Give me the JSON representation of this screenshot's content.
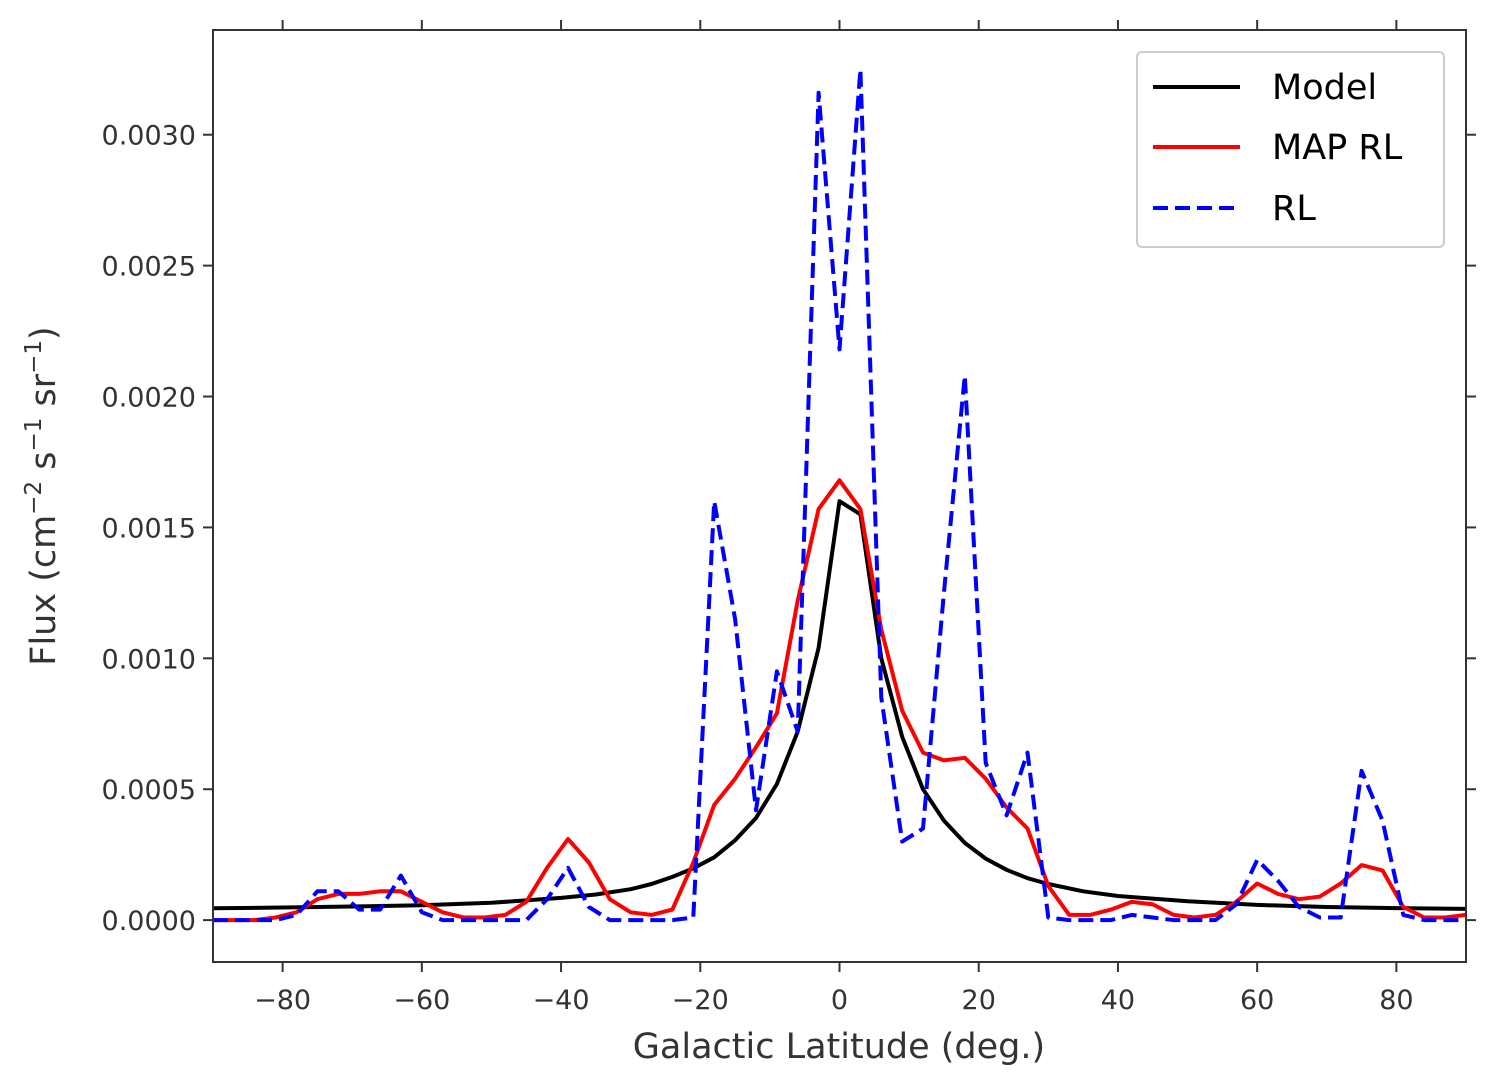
{
  "chart_data": {
    "type": "line",
    "title": "",
    "xlabel": "Galactic Latitude (deg.)",
    "ylabel": {
      "prefix": "Flux (cm",
      "sup1": "−2",
      "mid1": " s",
      "sup2": "−1",
      "mid2": " sr",
      "sup3": "−1",
      "suffix": ")"
    },
    "xlim": [
      -90,
      90
    ],
    "ylim": [
      -0.00016,
      0.0034
    ],
    "xticks": [
      -80,
      -60,
      -40,
      -20,
      0,
      20,
      40,
      60,
      80
    ],
    "xtick_labels": [
      "−80",
      "−60",
      "−40",
      "−20",
      "0",
      "20",
      "40",
      "60",
      "80"
    ],
    "yticks": [
      0.0,
      0.0005,
      0.001,
      0.0015,
      0.002,
      0.0025,
      0.003
    ],
    "ytick_labels": [
      "0.0000",
      "0.0005",
      "0.0010",
      "0.0015",
      "0.0020",
      "0.0025",
      "0.0030"
    ],
    "grid": false,
    "legend_position": "top-right",
    "series": [
      {
        "name": "Model",
        "color": "#000000",
        "style": "solid",
        "x": [
          -90,
          -80,
          -70,
          -60,
          -50,
          -40,
          -35,
          -30,
          -27,
          -24,
          -21,
          -18,
          -15,
          -12,
          -9,
          -6,
          -3,
          0,
          3,
          6,
          9,
          12,
          15,
          18,
          21,
          24,
          27,
          30,
          35,
          40,
          50,
          60,
          70,
          80,
          90
        ],
        "y": [
          4.5e-05,
          4.8e-05,
          5.2e-05,
          5.7e-05,
          6.6e-05,
          8.5e-05,
          9.8e-05,
          0.000118,
          0.000138,
          0.000165,
          0.000198,
          0.00024,
          0.000305,
          0.00039,
          0.00052,
          0.00072,
          0.00104,
          0.0016,
          0.00155,
          0.001,
          0.0007,
          0.0005,
          0.00038,
          0.000295,
          0.000235,
          0.000192,
          0.00016,
          0.000138,
          0.00011,
          9.2e-05,
          7.2e-05,
          5.8e-05,
          5e-05,
          4.6e-05,
          4.3e-05
        ]
      },
      {
        "name": "MAP RL",
        "color": "#ff0000",
        "style": "solid",
        "x": [
          -90,
          -84,
          -81,
          -78,
          -75,
          -72,
          -69,
          -66,
          -63,
          -60,
          -57,
          -54,
          -51,
          -48,
          -45,
          -42,
          -39,
          -36,
          -33,
          -30,
          -27,
          -24,
          -21,
          -18,
          -15,
          -12,
          -9,
          -6,
          -3,
          0,
          3,
          6,
          9,
          12,
          15,
          18,
          21,
          24,
          27,
          30,
          33,
          36,
          39,
          42,
          45,
          48,
          51,
          54,
          57,
          60,
          63,
          66,
          69,
          72,
          75,
          78,
          81,
          84,
          87,
          90
        ],
        "y": [
          0.0,
          0.0,
          1e-05,
          3e-05,
          8e-05,
          0.0001,
          0.0001,
          0.00011,
          0.00011,
          7e-05,
          3e-05,
          1e-05,
          1e-05,
          2e-05,
          7e-05,
          0.0002,
          0.00031,
          0.00022,
          8e-05,
          3e-05,
          2e-05,
          4e-05,
          0.00022,
          0.00044,
          0.00054,
          0.00066,
          0.00079,
          0.00122,
          0.00157,
          0.00168,
          0.00157,
          0.00111,
          0.0008,
          0.00064,
          0.00061,
          0.00062,
          0.00054,
          0.00043,
          0.00035,
          0.00013,
          2e-05,
          2e-05,
          4e-05,
          7e-05,
          6e-05,
          2e-05,
          1e-05,
          2e-05,
          7e-05,
          0.00014,
          0.0001,
          8e-05,
          9e-05,
          0.00014,
          0.00021,
          0.00019,
          5e-05,
          1e-05,
          1e-05,
          2e-05
        ]
      },
      {
        "name": "RL",
        "color": "#0000ff",
        "style": "dashed",
        "x": [
          -90,
          -84,
          -81,
          -78,
          -75,
          -72,
          -69,
          -66,
          -63,
          -60,
          -57,
          -54,
          -51,
          -48,
          -45,
          -42,
          -39,
          -36,
          -33,
          -30,
          -27,
          -24,
          -21,
          -18,
          -15,
          -12,
          -9,
          -6,
          -3,
          0,
          3,
          6,
          9,
          12,
          15,
          18,
          21,
          24,
          27,
          30,
          33,
          36,
          39,
          42,
          45,
          48,
          51,
          54,
          57,
          60,
          63,
          66,
          69,
          72,
          75,
          78,
          81,
          84,
          87,
          90
        ],
        "y": [
          0.0,
          0.0,
          0.0,
          2e-05,
          0.00011,
          0.00011,
          4e-05,
          4e-05,
          0.00017,
          3e-05,
          0.0,
          0.0,
          0.0,
          0.0,
          0.0,
          8e-05,
          0.0002,
          5e-05,
          0.0,
          0.0,
          0.0,
          0.0,
          1e-05,
          0.0016,
          0.00115,
          0.00042,
          0.00095,
          0.00072,
          0.00316,
          0.00218,
          0.00325,
          0.00085,
          0.0003,
          0.00035,
          0.00125,
          0.00208,
          0.0006,
          0.0004,
          0.00064,
          1e-05,
          0.0,
          0.0,
          0.0,
          2e-05,
          1e-05,
          0.0,
          0.0,
          0.0,
          6e-05,
          0.00023,
          0.00015,
          5e-05,
          1e-05,
          1e-05,
          0.00057,
          0.00038,
          2e-05,
          0.0,
          0.0,
          0.0
        ]
      }
    ]
  }
}
